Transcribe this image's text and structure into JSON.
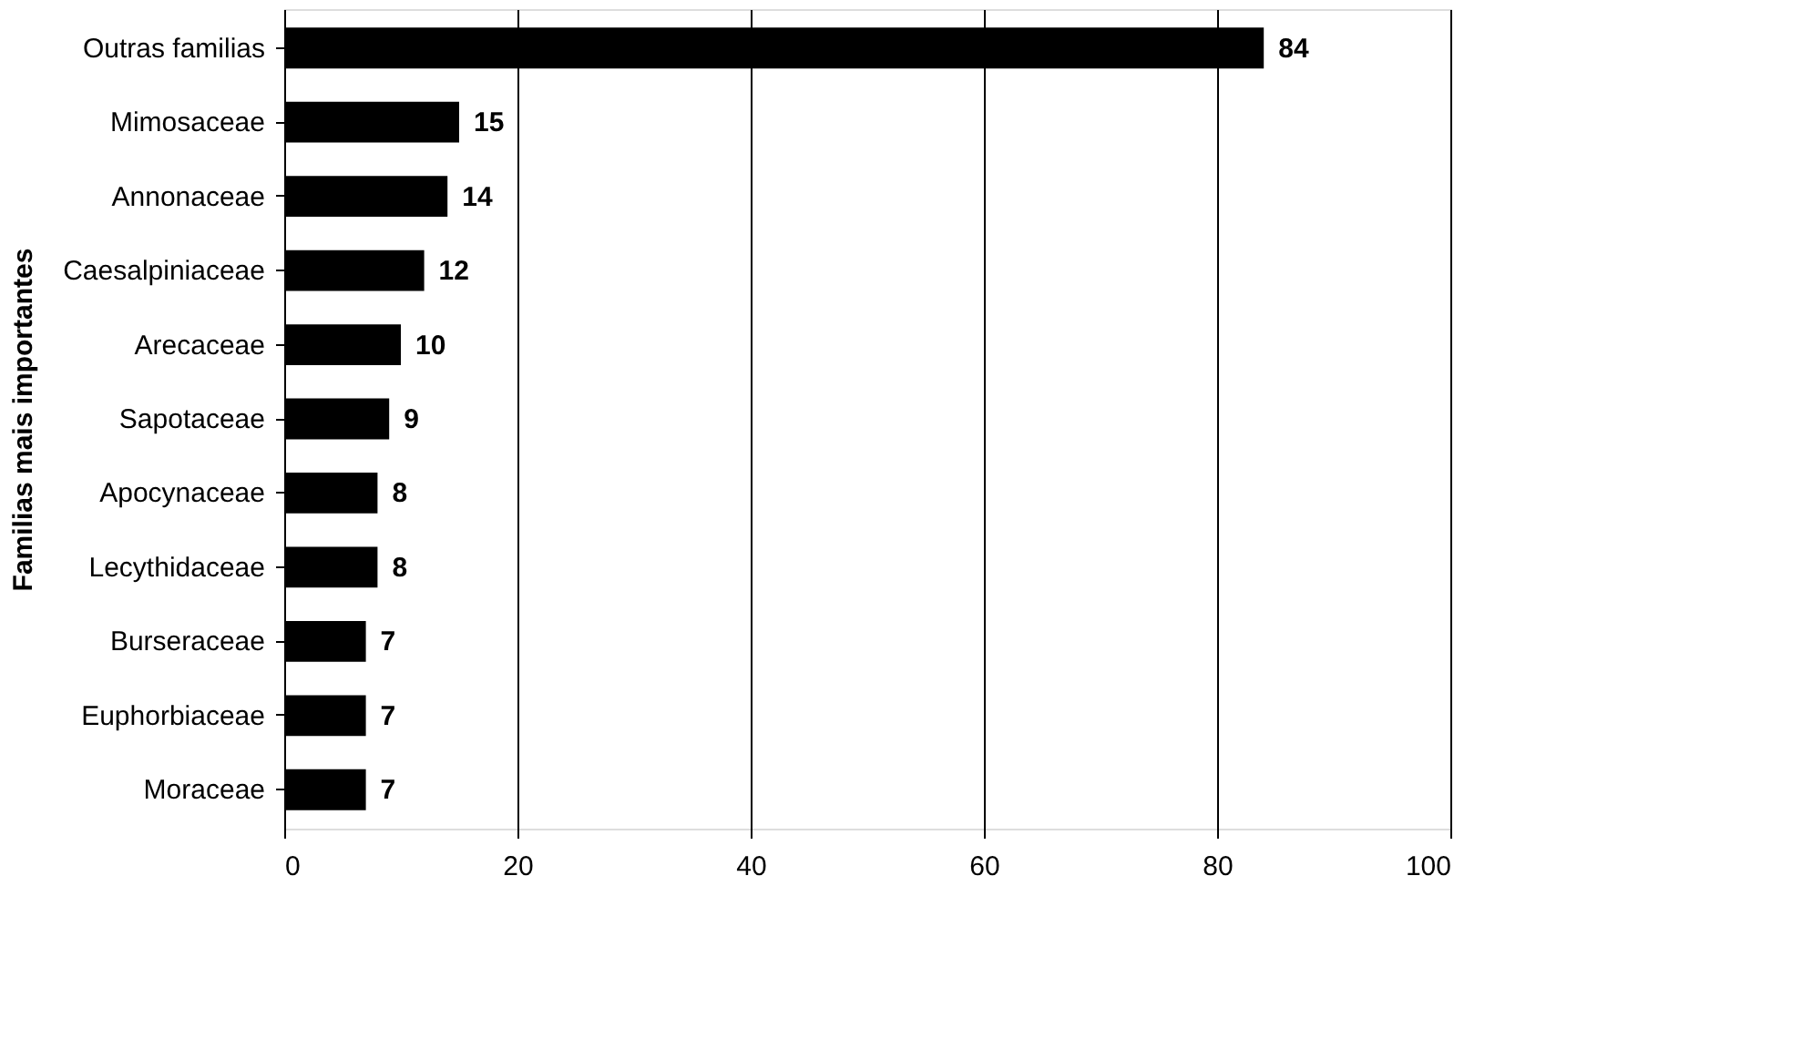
{
  "chart_data": {
    "type": "bar",
    "orientation": "horizontal",
    "ylabel": "Familias mais importantes",
    "categories": [
      "Outras familias",
      "Mimosaceae",
      "Annonaceae",
      "Caesalpiniaceae",
      "Arecaceae",
      "Sapotaceae",
      "Apocynaceae",
      "Lecythidaceae",
      "Burseraceae",
      "Euphorbiaceae",
      "Moraceae"
    ],
    "values": [
      84,
      15,
      14,
      12,
      10,
      9,
      8,
      8,
      7,
      7,
      7
    ],
    "color": "#000000",
    "xlim": [
      0,
      100
    ],
    "xticks": [
      0,
      20,
      40,
      60,
      80,
      100
    ],
    "grid": "x",
    "data_labels": true
  }
}
